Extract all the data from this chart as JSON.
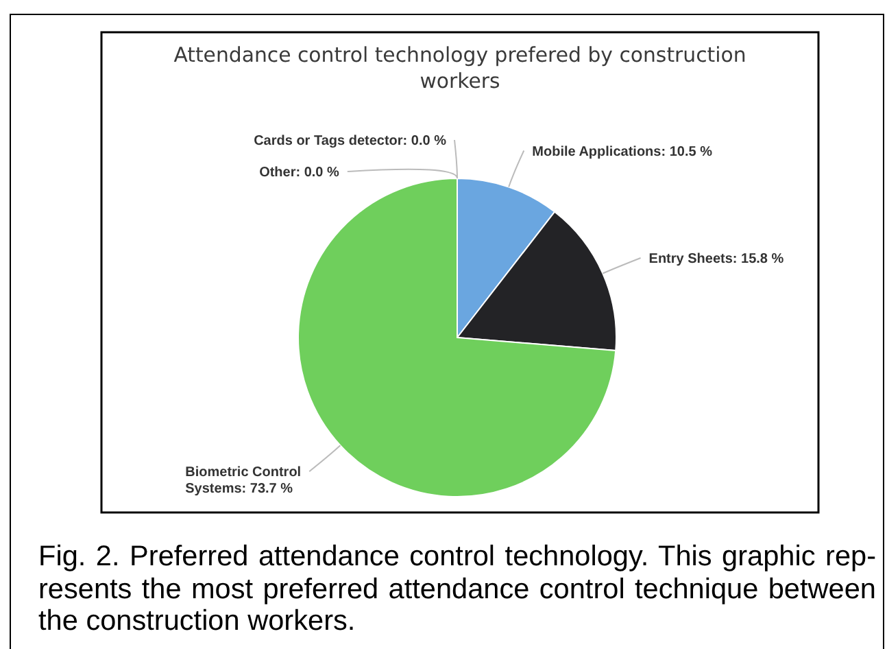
{
  "chart_data": {
    "type": "pie",
    "title": "Attendance control technology prefered by construction workers",
    "categories": [
      "Mobile Applications",
      "Entry Sheets",
      "Biometric Control Systems",
      "Other",
      "Cards or Tags detector"
    ],
    "values": [
      10.5,
      15.8,
      73.7,
      0.0,
      0.0
    ],
    "colors": [
      "#6aa6e0",
      "#232326",
      "#6fcf5c",
      "#f7a35c",
      "#8085e9"
    ],
    "value_labels": [
      ": 10.5 %",
      ": 15.8 %",
      ": 73.7 %",
      ": 0.0 %",
      ": 0.0 %"
    ],
    "annotations": [
      "Fig. 2. Preferred attendance control technology. This graphic rep-resents the most preferred attendance control technique between the construction workers."
    ]
  }
}
